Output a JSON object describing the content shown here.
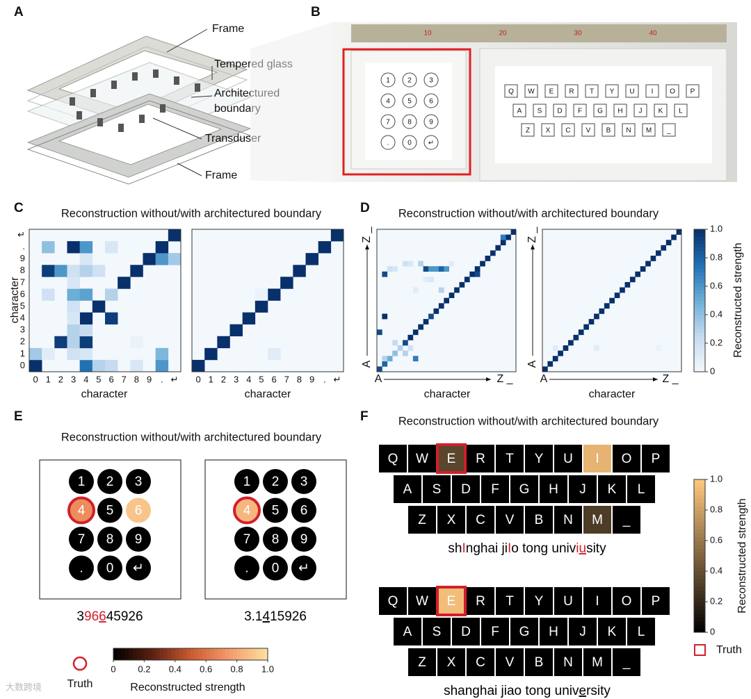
{
  "panel_a": {
    "label": "A",
    "callouts": [
      "Frame",
      "Tempered glass",
      "Architectured",
      "boundary",
      "Transduser",
      "Frame"
    ]
  },
  "panel_b": {
    "label": "B",
    "ruler": [
      "10",
      "20",
      "30",
      "40"
    ]
  },
  "keypad": [
    [
      "1",
      "2",
      "3"
    ],
    [
      "4",
      "5",
      "6"
    ],
    [
      "7",
      "8",
      "9"
    ],
    [
      ".",
      "0",
      "↵"
    ]
  ],
  "keyboard": [
    [
      "Q",
      "W",
      "E",
      "R",
      "T",
      "Y",
      "U",
      "I",
      "O",
      "P"
    ],
    [
      "A",
      "S",
      "D",
      "F",
      "G",
      "H",
      "J",
      "K",
      "L"
    ],
    [
      "Z",
      "X",
      "C",
      "V",
      "B",
      "N",
      "M",
      "_"
    ]
  ],
  "blues": [
    "#f3f8fd",
    "#c6dbef",
    "#6baed6",
    "#2171b5",
    "#08306b"
  ],
  "panel_c": {
    "label": "C",
    "title": "Reconstruction without/with architectured boundary",
    "categories": [
      "0",
      "1",
      "2",
      "3",
      "4",
      "5",
      "6",
      "7",
      "8",
      "9",
      ".",
      "↵"
    ],
    "xlabel": "character",
    "ylabel": "character",
    "matrices": [
      {
        "cells": [
          [
            0,
            0,
            1
          ],
          [
            4,
            0,
            0.75
          ],
          [
            5,
            0,
            0.3
          ],
          [
            6,
            0,
            0.25
          ],
          [
            8,
            0,
            0.15
          ],
          [
            10,
            0,
            0.6
          ],
          [
            0,
            1,
            0.35
          ],
          [
            1,
            1,
            0.1
          ],
          [
            3,
            1,
            0.2
          ],
          [
            4,
            1,
            0.15
          ],
          [
            10,
            1,
            0.45
          ],
          [
            2,
            2,
            0.95
          ],
          [
            3,
            2,
            0.3
          ],
          [
            4,
            2,
            0.95
          ],
          [
            8,
            2,
            0.05
          ],
          [
            3,
            3,
            0.3
          ],
          [
            4,
            3,
            0.25
          ],
          [
            4,
            4,
            1
          ],
          [
            6,
            4,
            0.95
          ],
          [
            3,
            4,
            0.15
          ],
          [
            5,
            5,
            1
          ],
          [
            3,
            5,
            0.2
          ],
          [
            3,
            6,
            0.5
          ],
          [
            4,
            6,
            0.55
          ],
          [
            6,
            6,
            0.3
          ],
          [
            1,
            6,
            0.2
          ],
          [
            7,
            7,
            1
          ],
          [
            3,
            7,
            0.15
          ],
          [
            1,
            8,
            0.95
          ],
          [
            2,
            8,
            0.6
          ],
          [
            3,
            8,
            0.2
          ],
          [
            4,
            8,
            0.3
          ],
          [
            5,
            8,
            0.2
          ],
          [
            8,
            8,
            1
          ],
          [
            4,
            9,
            0.15
          ],
          [
            9,
            9,
            1
          ],
          [
            10,
            9,
            0.6
          ],
          [
            11,
            9,
            0.35
          ],
          [
            1,
            10,
            0.4
          ],
          [
            3,
            10,
            1
          ],
          [
            4,
            10,
            0.6
          ],
          [
            6,
            10,
            0.15
          ],
          [
            10,
            10,
            1
          ],
          [
            11,
            11,
            1
          ]
        ]
      },
      {
        "cells": [
          [
            0,
            0,
            1
          ],
          [
            1,
            1,
            1
          ],
          [
            2,
            2,
            1
          ],
          [
            3,
            3,
            1
          ],
          [
            4,
            4,
            1
          ],
          [
            5,
            5,
            1
          ],
          [
            6,
            6,
            1
          ],
          [
            7,
            7,
            1
          ],
          [
            8,
            8,
            1
          ],
          [
            9,
            9,
            1
          ],
          [
            10,
            10,
            1
          ],
          [
            11,
            11,
            1
          ],
          [
            6,
            1,
            0.1
          ],
          [
            5,
            6,
            0.05
          ]
        ]
      }
    ]
  },
  "panel_d": {
    "label": "D",
    "title": "Reconstruction without/with architectured boundary",
    "start": "A",
    "end": "Z _",
    "xlabel": "character",
    "matrices": [
      {
        "diagonal": [
          0.9,
          0.8,
          0.5,
          0.4,
          0.3,
          0.9,
          1,
          1,
          1,
          1,
          0.9,
          1,
          1,
          1,
          1,
          1,
          1,
          1,
          1,
          1,
          1,
          1,
          1,
          1,
          1,
          1,
          1
        ],
        "off_diagonal": [
          [
            0,
            7,
            0.9
          ],
          [
            1,
            10,
            1
          ],
          [
            1,
            2,
            0.3
          ],
          [
            5,
            3,
            0.3
          ],
          [
            3,
            5,
            0.25
          ],
          [
            7,
            2,
            0.7
          ],
          [
            6,
            4,
            0.2
          ],
          [
            1,
            18,
            0.9
          ],
          [
            2,
            19,
            0.2
          ],
          [
            3,
            19,
            0.15
          ],
          [
            5,
            20,
            0.2
          ],
          [
            6,
            20,
            0.15
          ],
          [
            8,
            20,
            0.3
          ],
          [
            9,
            19,
            0.9
          ],
          [
            10,
            19,
            0.6
          ],
          [
            11,
            19,
            0.6
          ],
          [
            12,
            19,
            0.8
          ],
          [
            13,
            19,
            0.6
          ],
          [
            10,
            17,
            0.15
          ],
          [
            9,
            17,
            0.1
          ],
          [
            7,
            15,
            0.1
          ],
          [
            12,
            15,
            0.3
          ],
          [
            14,
            20,
            0.1
          ],
          [
            19,
            18,
            0.9
          ],
          [
            24,
            25,
            0.7
          ]
        ]
      },
      {
        "diagonal": [
          1,
          1,
          1,
          1,
          1,
          1,
          1,
          1,
          1,
          1,
          1,
          1,
          1,
          1,
          1,
          1,
          1,
          1,
          1,
          1,
          1,
          1,
          1,
          1,
          1,
          1,
          1
        ],
        "off_diagonal": [
          [
            2,
            4,
            0.1
          ],
          [
            10,
            4,
            0.1
          ],
          [
            22,
            4,
            0.05
          ]
        ]
      }
    ],
    "colorbar": {
      "label": "Reconstructed strength",
      "ticks": [
        0,
        0.2,
        0.4,
        0.6,
        0.8,
        {
          "value": 1,
          "label": "1.0"
        }
      ]
    }
  },
  "panel_e": {
    "label": "E",
    "title": "Reconstruction without/with architectured boundary",
    "truth": "Truth",
    "colors": [
      "#000000",
      "#5a2010",
      "#c85a30",
      "#f59a6a",
      "#fbe0a0"
    ],
    "keypads": [
      {
        "highlights": [
          {
            "row": 1,
            "col": 0,
            "value": 0.7,
            "truth": true
          },
          {
            "row": 1,
            "col": 2,
            "value": 0.9,
            "truth": false
          }
        ],
        "result": [
          {
            "text": "3",
            "color": "#000000"
          },
          {
            "text": "96",
            "color": "#d21f2b"
          },
          {
            "text": "6",
            "color": "#d21f2b",
            "underline": true
          },
          {
            "text": "4",
            "color": "#000000"
          },
          {
            "text": "5926",
            "color": "#000000"
          }
        ]
      },
      {
        "highlights": [
          {
            "row": 1,
            "col": 0,
            "value": 0.85,
            "truth": true
          }
        ],
        "result": [
          {
            "text": "3.1",
            "color": "#000000"
          },
          {
            "text": "4",
            "color": "#000000",
            "underline": true
          },
          {
            "text": "15926",
            "color": "#000000"
          }
        ]
      }
    ],
    "colorbar": {
      "label": "Reconstructed strength",
      "ticks": [
        0,
        0.2,
        0.4,
        0.6,
        0.8,
        {
          "value": 1,
          "label": "1.0"
        }
      ]
    }
  },
  "panel_f": {
    "label": "F",
    "title": "Reconstruction without/with architectured boundary",
    "truth": "Truth",
    "colors": [
      "#000000",
      "#ffc77f"
    ],
    "keyboards": [
      {
        "highlights": [
          {
            "row": 0,
            "col": 2,
            "value": 0.35,
            "truth": true
          },
          {
            "row": 0,
            "col": 7,
            "value": 0.9,
            "truth": false
          },
          {
            "row": 2,
            "col": 6,
            "value": 0.3,
            "truth": false
          }
        ],
        "result": [
          {
            "text": "sh",
            "color": "#000000"
          },
          {
            "text": "I",
            "color": "#d21f2b"
          },
          {
            "text": "nghai ji",
            "color": "#000000"
          },
          {
            "text": "I",
            "color": "#d21f2b"
          },
          {
            "text": "o tong univ",
            "color": "#000000"
          },
          {
            "text": "i",
            "color": "#d21f2b"
          },
          {
            "text": "u",
            "color": "#d21f2b",
            "underline": true
          },
          {
            "text": "sity",
            "color": "#000000"
          }
        ]
      },
      {
        "highlights": [
          {
            "row": 0,
            "col": 2,
            "value": 0.95,
            "truth": true
          }
        ],
        "result": [
          {
            "text": "shanghai jiao tong univ",
            "color": "#000000"
          },
          {
            "text": "e",
            "color": "#000000",
            "underline": true
          },
          {
            "text": "rsity",
            "color": "#000000"
          }
        ]
      }
    ],
    "colorbar": {
      "label": "Reconstructed strength",
      "ticks": [
        0,
        0.2,
        0.4,
        0.6,
        0.8,
        {
          "value": 1,
          "label": "1.0"
        }
      ]
    }
  },
  "watermark": "大数跨境"
}
